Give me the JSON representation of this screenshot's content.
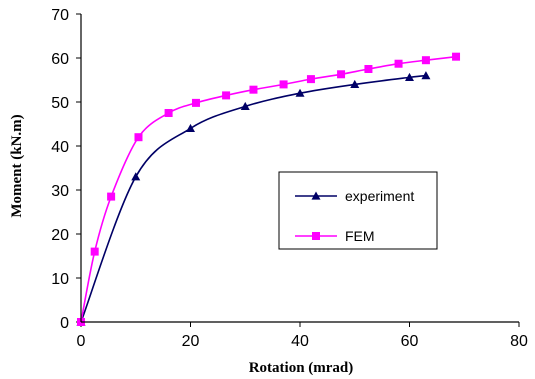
{
  "chart_data": {
    "type": "line",
    "title": "",
    "xlabel": "Rotation (mrad)",
    "ylabel": "Moment (kN.m)",
    "xlim": [
      0,
      80
    ],
    "ylim": [
      0,
      70
    ],
    "xticks": [
      0,
      20,
      40,
      60,
      80
    ],
    "yticks": [
      0,
      10,
      20,
      30,
      40,
      50,
      60,
      70
    ],
    "grid": false,
    "legend_position": "center-right",
    "series": [
      {
        "name": "experiment",
        "color": "#000066",
        "marker": "triangle",
        "x": [
          0,
          10,
          20,
          30,
          40,
          50,
          60,
          63
        ],
        "y": [
          0,
          33,
          44,
          49,
          52,
          54,
          55.6,
          56
        ]
      },
      {
        "name": "FEM",
        "color": "#ff00ff",
        "marker": "square",
        "x": [
          0,
          2.5,
          5.5,
          10.5,
          16,
          21,
          26.5,
          31.5,
          37,
          42,
          47.5,
          52.5,
          58,
          63,
          68.5
        ],
        "y": [
          0,
          16,
          28.5,
          42,
          47.5,
          49.8,
          51.5,
          52.8,
          54,
          55.2,
          56.3,
          57.5,
          58.7,
          59.5,
          60.3
        ]
      }
    ]
  }
}
